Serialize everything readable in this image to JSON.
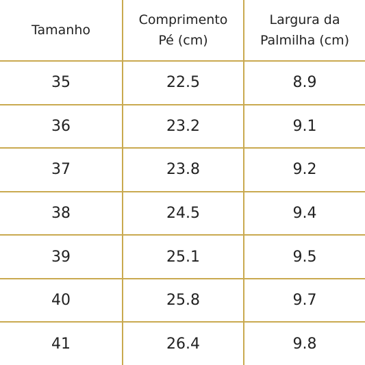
{
  "table": {
    "headers": [
      [
        "Tamanho"
      ],
      [
        "Comprimento",
        "Pé (cm)"
      ],
      [
        "Largura da",
        "Palmilha (cm)"
      ]
    ],
    "rows": [
      [
        "35",
        "22.5",
        "8.9"
      ],
      [
        "36",
        "23.2",
        "9.1"
      ],
      [
        "37",
        "23.8",
        "9.2"
      ],
      [
        "38",
        "24.5",
        "9.4"
      ],
      [
        "39",
        "25.1",
        "9.5"
      ],
      [
        "40",
        "25.8",
        "9.7"
      ],
      [
        "41",
        "26.4",
        "9.8"
      ]
    ]
  },
  "colors": {
    "border": "#c9a94f",
    "text": "#222222",
    "background": "#ffffff"
  }
}
